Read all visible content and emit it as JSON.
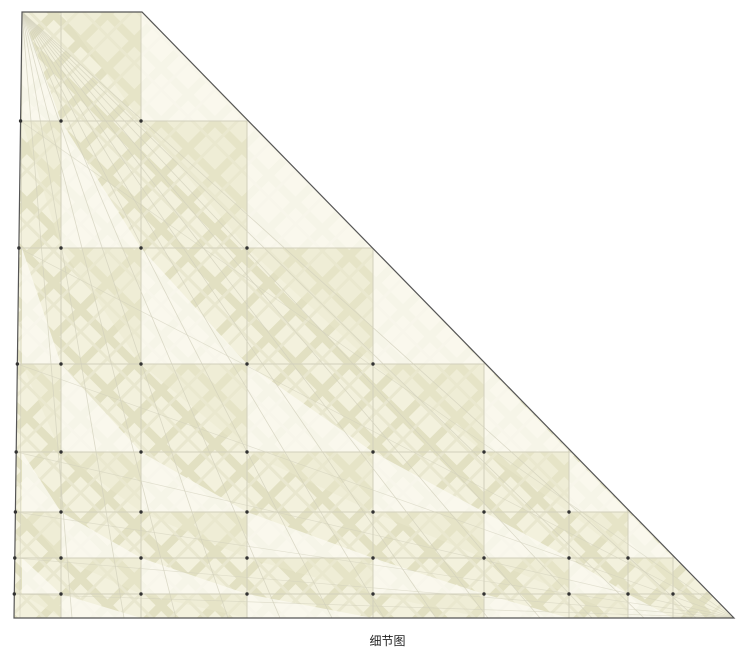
{
  "figure": {
    "caption": "细节图",
    "colors": {
      "paper": "#f3f1dd",
      "hatch": "#dcdab8",
      "light_facet": "#fbfaf1",
      "dark_facet": "#ebe9cf",
      "crease": "#d2d0bc",
      "outline": "#555555",
      "vertex": "#333333"
    }
  }
}
